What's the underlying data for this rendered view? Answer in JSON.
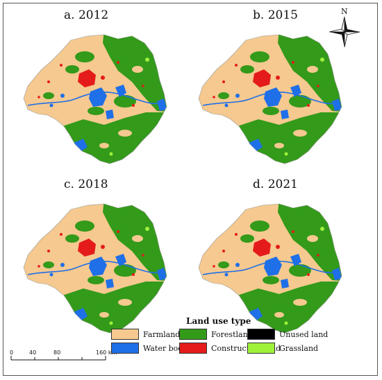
{
  "panels": [
    {
      "label": "a. 2012"
    },
    {
      "label": "b. 2015"
    },
    {
      "label": "c. 2018"
    },
    {
      "label": "d. 2021"
    }
  ],
  "north": {
    "label": "N"
  },
  "legend": {
    "title": "Land use type",
    "items": [
      {
        "label": "Farmland",
        "color": "#f5c98f"
      },
      {
        "label": "Forestland",
        "color": "#339a1a"
      },
      {
        "label": "Unused land",
        "color": "#000000"
      },
      {
        "label": "Water body",
        "color": "#1f6fe8"
      },
      {
        "label": "Construction land",
        "color": "#e51b1b"
      },
      {
        "label": "Grassland",
        "color": "#9ff23a"
      }
    ]
  },
  "scale_bar": {
    "ticks": [
      "0",
      "40",
      "80",
      "160 km"
    ]
  }
}
